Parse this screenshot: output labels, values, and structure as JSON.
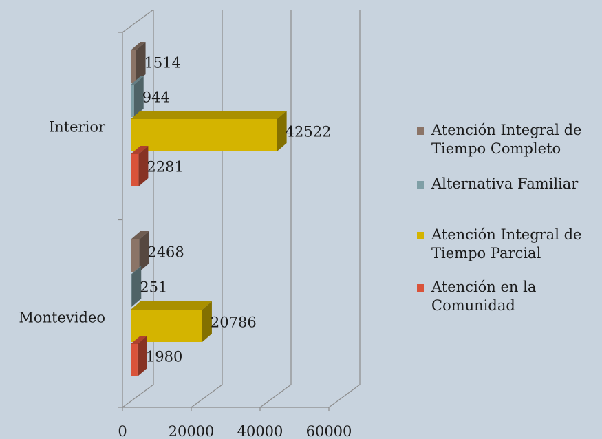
{
  "chart_data": {
    "type": "bar",
    "orientation": "horizontal",
    "three_d": true,
    "categories": [
      "Interior",
      "Montevideo"
    ],
    "series": [
      {
        "name": "Atención Integral de\nTiempo Completo",
        "color": "#8b7467",
        "values": [
          1514,
          2468
        ]
      },
      {
        "name": "Alternativa Familiar",
        "color": "#7f9fa6",
        "values": [
          944,
          251
        ]
      },
      {
        "name": "Atención Integral de\nTiempo Parcial",
        "color": "#d4b400",
        "values": [
          42522,
          20786
        ]
      },
      {
        "name": "Atención en la\nComunidad",
        "color": "#d9533a",
        "values": [
          2281,
          1980
        ]
      }
    ],
    "xticks": [
      "0",
      "20000",
      "40000",
      "60000"
    ],
    "xlim": [
      0,
      60000
    ],
    "grid": true,
    "legend_position": "right"
  }
}
